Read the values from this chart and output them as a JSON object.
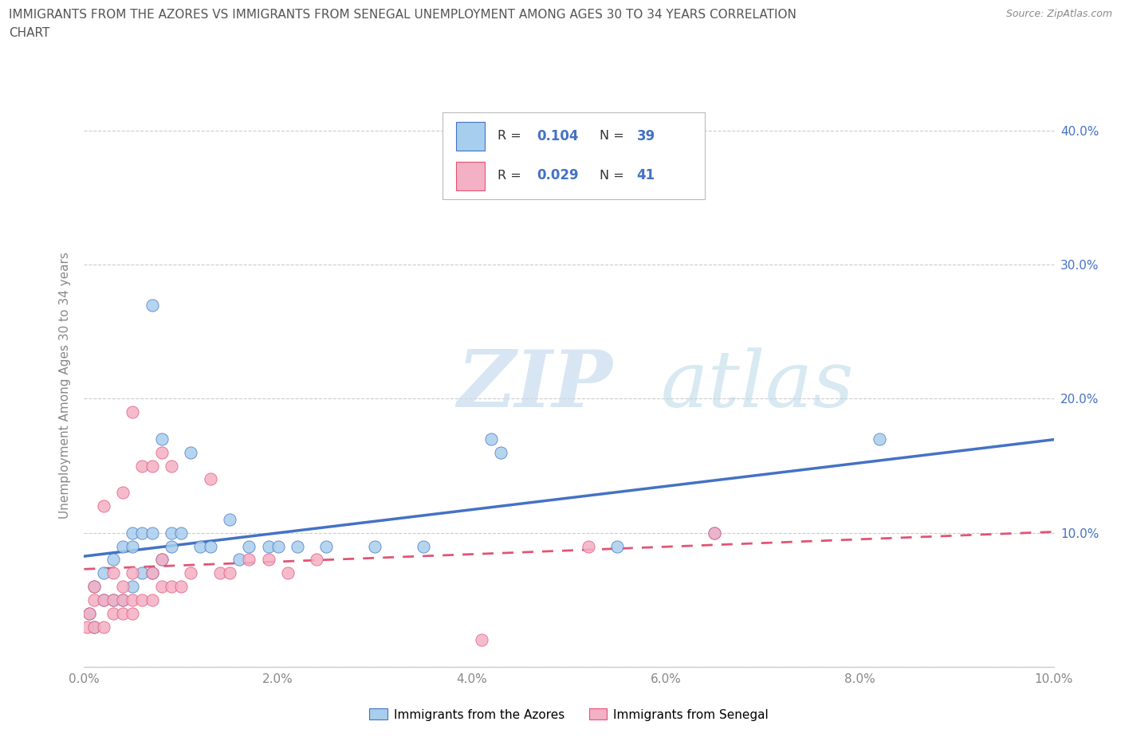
{
  "title_line1": "IMMIGRANTS FROM THE AZORES VS IMMIGRANTS FROM SENEGAL UNEMPLOYMENT AMONG AGES 30 TO 34 YEARS CORRELATION",
  "title_line2": "CHART",
  "source_text": "Source: ZipAtlas.com",
  "ylabel": "Unemployment Among Ages 30 to 34 years",
  "xlim": [
    0.0,
    0.1
  ],
  "ylim": [
    0.0,
    0.42
  ],
  "xtick_vals": [
    0.0,
    0.02,
    0.04,
    0.06,
    0.08,
    0.1
  ],
  "xtick_labels": [
    "0.0%",
    "2.0%",
    "4.0%",
    "6.0%",
    "8.0%",
    "10.0%"
  ],
  "ytick_vals": [
    0.0,
    0.1,
    0.2,
    0.3,
    0.4
  ],
  "ytick_labels": [
    "",
    "10.0%",
    "20.0%",
    "30.0%",
    "40.0%"
  ],
  "R_azores": 0.104,
  "N_azores": 39,
  "R_senegal": 0.029,
  "N_senegal": 41,
  "color_azores": "#A8CEED",
  "color_senegal": "#F4B0C4",
  "line_color_azores": "#4472C4",
  "line_color_senegal": "#E05575",
  "watermark_zip": "ZIP",
  "watermark_atlas": "atlas",
  "azores_x": [
    0.0005,
    0.001,
    0.001,
    0.002,
    0.002,
    0.003,
    0.003,
    0.004,
    0.004,
    0.005,
    0.005,
    0.005,
    0.006,
    0.006,
    0.007,
    0.007,
    0.007,
    0.008,
    0.008,
    0.009,
    0.009,
    0.01,
    0.011,
    0.012,
    0.013,
    0.015,
    0.016,
    0.017,
    0.019,
    0.02,
    0.022,
    0.025,
    0.03,
    0.035,
    0.042,
    0.043,
    0.055,
    0.065,
    0.082
  ],
  "azores_y": [
    0.04,
    0.03,
    0.06,
    0.05,
    0.07,
    0.05,
    0.08,
    0.05,
    0.09,
    0.06,
    0.09,
    0.1,
    0.07,
    0.1,
    0.07,
    0.1,
    0.27,
    0.08,
    0.17,
    0.09,
    0.1,
    0.1,
    0.16,
    0.09,
    0.09,
    0.11,
    0.08,
    0.09,
    0.09,
    0.09,
    0.09,
    0.09,
    0.09,
    0.09,
    0.17,
    0.16,
    0.09,
    0.1,
    0.17
  ],
  "senegal_x": [
    0.0003,
    0.0005,
    0.001,
    0.001,
    0.001,
    0.002,
    0.002,
    0.003,
    0.003,
    0.003,
    0.004,
    0.004,
    0.004,
    0.005,
    0.005,
    0.005,
    0.005,
    0.006,
    0.006,
    0.007,
    0.007,
    0.007,
    0.008,
    0.008,
    0.009,
    0.009,
    0.01,
    0.011,
    0.013,
    0.014,
    0.015,
    0.017,
    0.019,
    0.021,
    0.024,
    0.041,
    0.052,
    0.065,
    0.008,
    0.004,
    0.002
  ],
  "senegal_y": [
    0.03,
    0.04,
    0.03,
    0.05,
    0.06,
    0.03,
    0.05,
    0.04,
    0.05,
    0.07,
    0.04,
    0.05,
    0.06,
    0.04,
    0.05,
    0.07,
    0.19,
    0.05,
    0.15,
    0.05,
    0.07,
    0.15,
    0.06,
    0.16,
    0.06,
    0.15,
    0.06,
    0.07,
    0.14,
    0.07,
    0.07,
    0.08,
    0.08,
    0.07,
    0.08,
    0.02,
    0.09,
    0.1,
    0.08,
    0.13,
    0.12
  ],
  "bg_color": "#FFFFFF",
  "grid_color": "#CCCCCC",
  "title_color": "#555555",
  "axis_label_color": "#888888",
  "tick_color_blue": "#4472C4"
}
